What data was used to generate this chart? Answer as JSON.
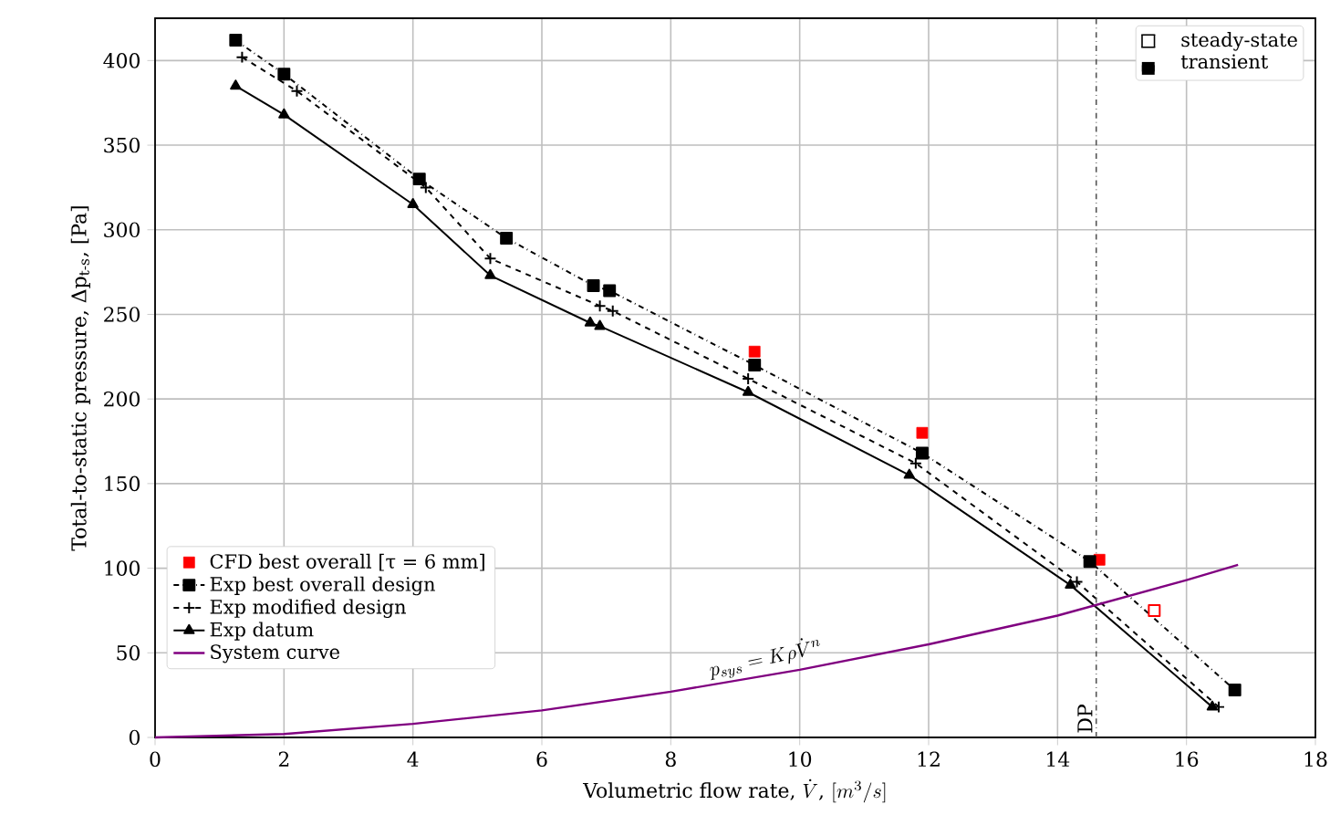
{
  "chart_data": {
    "type": "line",
    "xlabel": "\\mbox{Volumetric flow rate, }\\dot{V}\\mbox{, }[m^{3}/s]",
    "ylabel": "Total-to-static pressure, Δp$_{t-s}$, [Pa]",
    "xlim": [
      0,
      18
    ],
    "xticks": [
      0,
      2,
      4,
      6,
      8,
      10,
      12,
      14,
      16,
      18
    ],
    "ylim": [
      0,
      425
    ],
    "yticks": [
      0,
      50,
      100,
      150,
      200,
      250,
      300,
      350,
      400
    ],
    "grid": true,
    "legend": "bottom left",
    "series": [
      {
        "name": "CFD best overall [τ = 6 mm]",
        "type": "scatter",
        "color": "#ff0000",
        "marker": "square",
        "x": [
          9.3,
          11.9,
          14.65
        ],
        "values": [
          228,
          180,
          105
        ]
      },
      {
        "type": "scatter",
        "color": "#ff0000",
        "marker": "square-open",
        "x": [
          15.5
        ],
        "values": [
          75
        ]
      },
      {
        "name": "Exp best overall design",
        "color": "#000000",
        "marker": "square",
        "line_style": "dashdot",
        "x": [
          1.25,
          2.0,
          4.1,
          5.45,
          6.8,
          7.05,
          9.3,
          11.9,
          14.5,
          16.75
        ],
        "values": [
          412,
          392,
          330,
          295,
          267,
          264,
          220,
          168,
          104,
          28
        ]
      },
      {
        "name": "Exp modified design",
        "color": "#000000",
        "marker": "cross",
        "line_style": "dashed",
        "x": [
          1.35,
          2.2,
          4.2,
          5.2,
          6.9,
          7.1,
          9.2,
          11.8,
          14.3,
          16.5
        ],
        "values": [
          402,
          382,
          325,
          283,
          255,
          252,
          212,
          162,
          92,
          18
        ]
      },
      {
        "name": "Exp datum",
        "color": "#000000",
        "marker": "triangle",
        "line_style": "solid",
        "x": [
          1.25,
          2.0,
          4.0,
          5.2,
          6.75,
          6.9,
          9.2,
          11.7,
          14.2,
          16.4
        ],
        "values": [
          385,
          368,
          315,
          273,
          245,
          243,
          204,
          155,
          90,
          18
        ]
      },
      {
        "name": "System curve",
        "color": "#800080",
        "marker": "none",
        "line_style": "solid",
        "x": [
          0,
          2,
          4,
          6,
          8,
          10,
          12,
          14,
          16,
          16.8
        ],
        "values": [
          0,
          2,
          8,
          16,
          27,
          40,
          55,
          72,
          93,
          102
        ]
      }
    ],
    "ref_lines": [
      {
        "axis": "x",
        "value": 14.6,
        "label": "DP",
        "color": "#555555",
        "line_style": "dashdot"
      }
    ],
    "annotations": [
      {
        "text": "p_{sys} = K\\rho\\dot{V}^{n}",
        "x": 10.5,
        "y": 44
      },
      "steady-state",
      "transient"
    ]
  }
}
